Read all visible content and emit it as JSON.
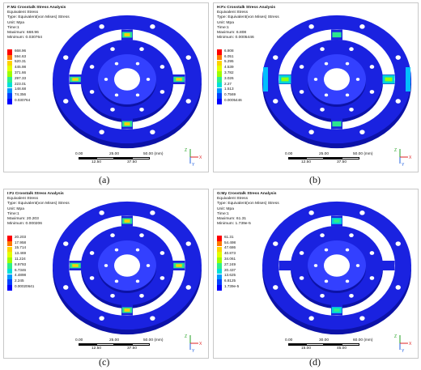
{
  "panels": [
    {
      "id": "a",
      "title": "F:Mz Crosstalk Stress Analysis",
      "lines": [
        "Equivalent Stress",
        "Type: Equivalent(von Mises) Stress",
        "Unit: Mpa",
        "Time:1",
        "Maximum: 668.96",
        "Minimum: 0.030764"
      ],
      "legend": [
        "668.96",
        "594.63",
        "520.31",
        "445.98",
        "371.66",
        "297.33",
        "223.01",
        "148.68",
        "74.356",
        "0.030764"
      ],
      "scale_top": [
        "0.00",
        "25.00",
        "50.00 (mm)"
      ],
      "scale_bottom": [
        "12.50",
        "37.50"
      ],
      "caption": "(a)",
      "hot_spots": "four-spokes"
    },
    {
      "id": "b",
      "title": "H:Fx Crosstalk Stress Analysis",
      "lines": [
        "Equivalent Stress",
        "Type: Equivalent(von Mises) Stress",
        "Unit: Mpa",
        "Time:1",
        "Maximum: 6.808",
        "Minimum: 0.0005446"
      ],
      "legend": [
        "6.808",
        "6.051",
        "5.295",
        "4.539",
        "3.782",
        "3.026",
        "2.27",
        "1.513",
        "0.7569",
        "0.0005446"
      ],
      "scale_top": [
        "0.00",
        "25.00",
        "50.00 (mm)"
      ],
      "scale_bottom": [
        "12.50",
        "37.50"
      ],
      "caption": "(b)",
      "hot_spots": "left-right"
    },
    {
      "id": "c",
      "title": "I:Fz Crosstalk Stress Analysis",
      "lines": [
        "Equivalent Stress",
        "Type: Equivalent(von Mises) Stress",
        "Unit: Mpa",
        "Time:1",
        "Maximum: 20.203",
        "Minimum: 0.000206"
      ],
      "legend": [
        "20.203",
        "17.958",
        "15.714",
        "13.469",
        "11.224",
        "8.9793",
        "6.7346",
        "4.4898",
        "2.245",
        "0.00020641"
      ],
      "scale_top": [
        "0.00",
        "25.00",
        "50.00 (mm)"
      ],
      "scale_bottom": [
        "12.50",
        "37.50"
      ],
      "caption": "(c)",
      "hot_spots": "four-spokes-inner"
    },
    {
      "id": "d",
      "title": "G:My Crosstalk Stress Analysis",
      "lines": [
        "Equivalent Stress",
        "Type: Equivalent(von Mises) Stress",
        "Unit: Mpa",
        "Time:1",
        "Maximum: 61.31",
        "Minimum: 1.739e-5"
      ],
      "legend": [
        "61.31",
        "54.498",
        "47.686",
        "40.873",
        "34.061",
        "27.249",
        "20.437",
        "13.625",
        "6.8125",
        "1.739e-5"
      ],
      "scale_top": [
        "0.00",
        "30.00",
        "60.00 (mm)"
      ],
      "scale_bottom": [
        "15.00",
        "45.00"
      ],
      "caption": "(d)",
      "hot_spots": "top-bottom"
    }
  ],
  "legend_colors": [
    "#ff0000",
    "#ff7a00",
    "#ffd200",
    "#e4ff00",
    "#9cff00",
    "#2df08a",
    "#00e0d8",
    "#0096ff",
    "#0040ff",
    "#0000ff"
  ],
  "triad_labels": [
    "Z",
    "X",
    "Y"
  ],
  "triad_colors": {
    "x": "#e02020",
    "y": "#2060e0",
    "z": "#20a020"
  }
}
